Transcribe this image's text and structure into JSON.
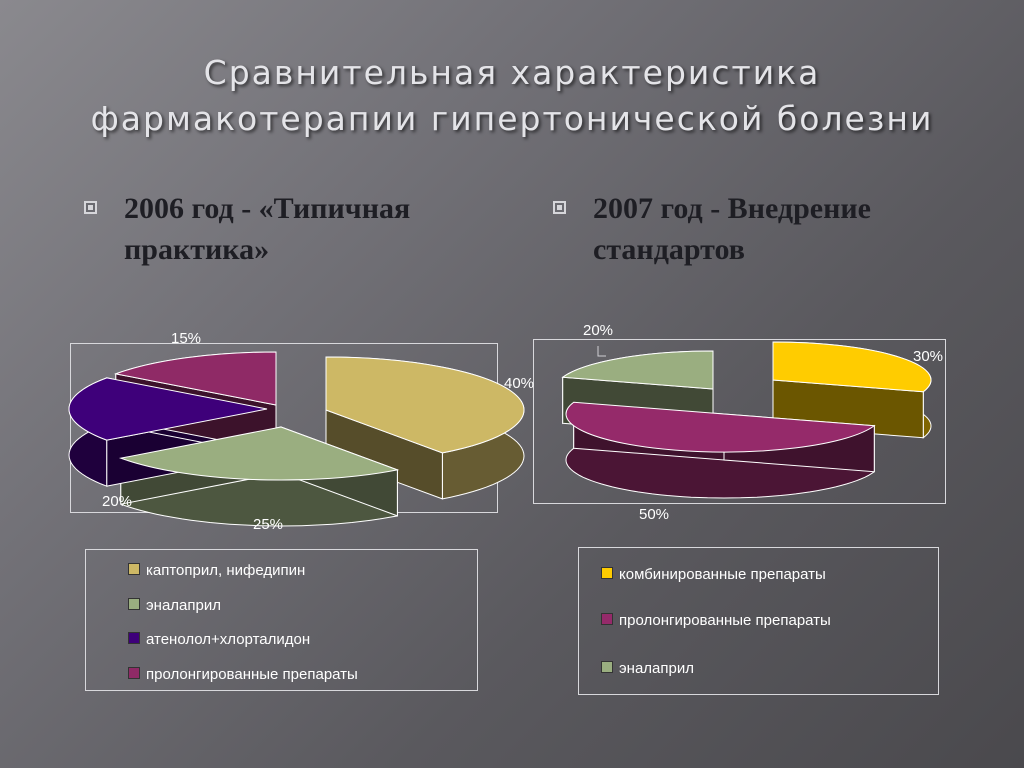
{
  "title": {
    "line1": "Сравнительная характеристика",
    "line2": "фармакотерапии гипертонической болезни"
  },
  "bullets": [
    {
      "line1": "2006 год - «Типичная",
      "line2": "практика»"
    },
    {
      "line1": "2007 год  - Внедрение",
      "line2": "стандартов"
    }
  ],
  "chart_data": [
    {
      "type": "pie",
      "style": "3d-exploded",
      "labels": [
        "каптоприл, нифедипин",
        "эналаприл",
        "атенолол+хлорталидон",
        "пролонгированные препараты"
      ],
      "values": [
        40,
        25,
        20,
        15
      ],
      "value_labels": [
        "40%",
        "25%",
        "20%",
        "15%"
      ],
      "colors": [
        "#cdb865",
        "#9aae80",
        "#3e007a",
        "#8f2a66"
      ],
      "legend_position": "bottom"
    },
    {
      "type": "pie",
      "style": "3d-exploded",
      "labels": [
        "комбинированные препараты",
        "пролонгированные препараты",
        "эналаприл"
      ],
      "values": [
        30,
        50,
        20
      ],
      "value_labels": [
        "30%",
        "50%",
        "20%"
      ],
      "colors": [
        "#ffcc00",
        "#952a6a",
        "#9aae80"
      ],
      "legend_position": "bottom"
    }
  ]
}
